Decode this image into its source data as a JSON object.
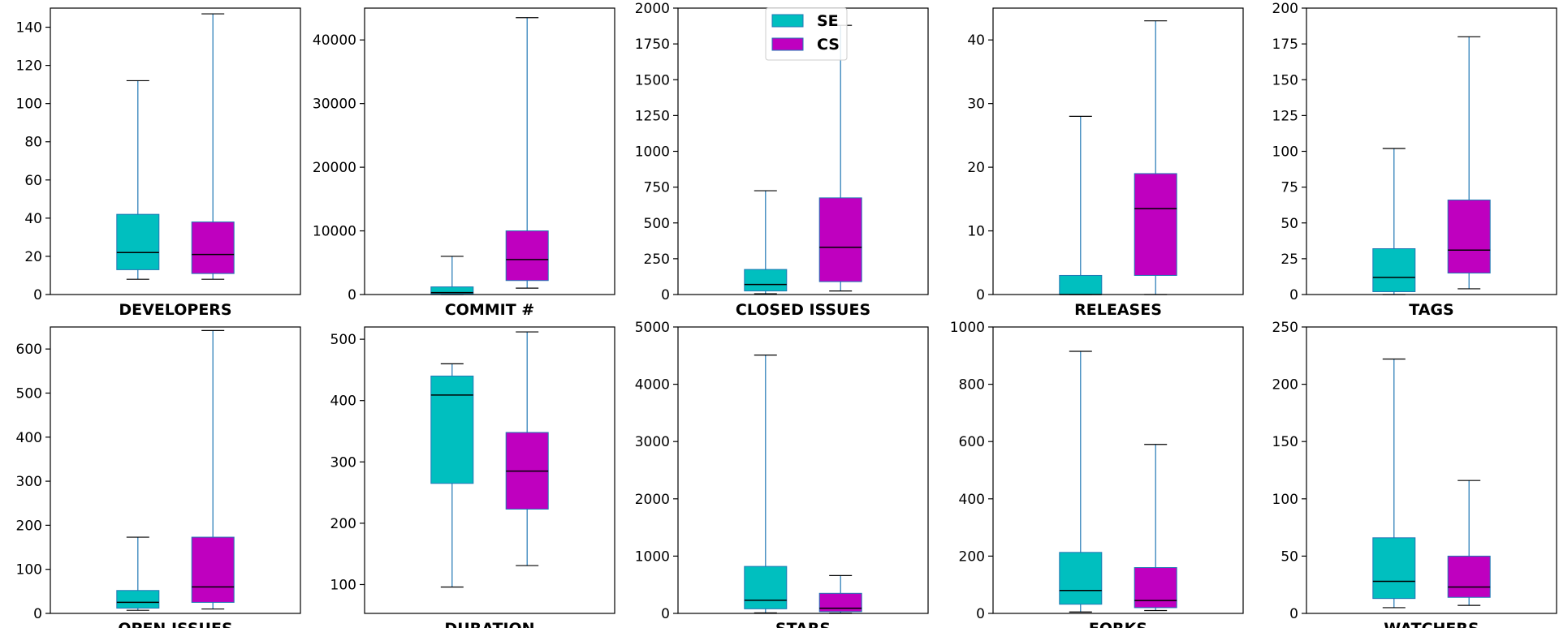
{
  "colors": {
    "se": "#00bfbf",
    "cs": "#bf00bf",
    "edge": "#1f77b4",
    "median": "#000000"
  },
  "legend": {
    "entries": [
      {
        "label": "SE",
        "color": "#00bfbf"
      },
      {
        "label": "CS",
        "color": "#bf00bf"
      }
    ],
    "placement": "top"
  },
  "chart_data": [
    {
      "type": "box",
      "title": "DEVELOPERS",
      "ylim": [
        0,
        150
      ],
      "yticks": [
        "0",
        "20",
        "40",
        "60",
        "80",
        "100",
        "120",
        "140"
      ],
      "series": [
        {
          "name": "SE",
          "whislo": 8,
          "q1": 13,
          "med": 22,
          "q3": 42,
          "whishi": 112
        },
        {
          "name": "CS",
          "whislo": 8,
          "q1": 11,
          "med": 21,
          "q3": 38,
          "whishi": 147
        }
      ]
    },
    {
      "type": "box",
      "title": "COMMIT #",
      "ylim": [
        0,
        45000
      ],
      "yticks": [
        "0",
        "10000",
        "20000",
        "30000",
        "40000"
      ],
      "series": [
        {
          "name": "SE",
          "whislo": 0,
          "q1": 100,
          "med": 300,
          "q3": 1200,
          "whishi": 6000
        },
        {
          "name": "CS",
          "whislo": 1000,
          "q1": 2200,
          "med": 5500,
          "q3": 10000,
          "whishi": 43500
        }
      ]
    },
    {
      "type": "box",
      "title": "CLOSED ISSUES",
      "ylim": [
        0,
        2000
      ],
      "yticks": [
        "0",
        "250",
        "500",
        "750",
        "1000",
        "1250",
        "1500",
        "1750",
        "2000"
      ],
      "series": [
        {
          "name": "SE",
          "whislo": 5,
          "q1": 25,
          "med": 70,
          "q3": 175,
          "whishi": 725
        },
        {
          "name": "CS",
          "whislo": 25,
          "q1": 90,
          "med": 330,
          "q3": 675,
          "whishi": 1880
        }
      ]
    },
    {
      "type": "box",
      "title": "RELEASES",
      "ylim": [
        0,
        45
      ],
      "yticks": [
        "0",
        "10",
        "20",
        "30",
        "40"
      ],
      "series": [
        {
          "name": "SE",
          "whislo": 0,
          "q1": 0,
          "med": 0,
          "q3": 3,
          "whishi": 28
        },
        {
          "name": "CS",
          "whislo": 0,
          "q1": 3,
          "med": 13.5,
          "q3": 19,
          "whishi": 43
        }
      ]
    },
    {
      "type": "box",
      "title": "TAGS",
      "ylim": [
        0,
        200
      ],
      "yticks": [
        "0",
        "25",
        "50",
        "75",
        "100",
        "125",
        "150",
        "175",
        "200"
      ],
      "series": [
        {
          "name": "SE",
          "whislo": 0,
          "q1": 2,
          "med": 12,
          "q3": 32,
          "whishi": 102
        },
        {
          "name": "CS",
          "whislo": 4,
          "q1": 15,
          "med": 31,
          "q3": 66,
          "whishi": 180
        }
      ]
    },
    {
      "type": "box",
      "title": "OPEN ISSUES",
      "ylim": [
        0,
        650
      ],
      "yticks": [
        "0",
        "100",
        "200",
        "300",
        "400",
        "500",
        "600"
      ],
      "series": [
        {
          "name": "SE",
          "whislo": 7,
          "q1": 12,
          "med": 25,
          "q3": 52,
          "whishi": 173
        },
        {
          "name": "CS",
          "whislo": 10,
          "q1": 25,
          "med": 60,
          "q3": 173,
          "whishi": 642
        }
      ]
    },
    {
      "type": "box",
      "title": "DURATION",
      "ylim": [
        53,
        520
      ],
      "yticks": [
        "100",
        "200",
        "300",
        "400",
        "500"
      ],
      "series": [
        {
          "name": "SE",
          "whislo": 96,
          "q1": 265,
          "med": 409,
          "q3": 440,
          "whishi": 460
        },
        {
          "name": "CS",
          "whislo": 131,
          "q1": 223,
          "med": 285,
          "q3": 348,
          "whishi": 512
        }
      ]
    },
    {
      "type": "box",
      "title": "STARS",
      "ylim": [
        0,
        5000
      ],
      "yticks": [
        "0",
        "1000",
        "2000",
        "3000",
        "4000",
        "5000"
      ],
      "series": [
        {
          "name": "SE",
          "whislo": 10,
          "q1": 80,
          "med": 230,
          "q3": 820,
          "whishi": 4510
        },
        {
          "name": "CS",
          "whislo": 5,
          "q1": 30,
          "med": 90,
          "q3": 350,
          "whishi": 660
        }
      ]
    },
    {
      "type": "box",
      "title": "FORKS",
      "ylim": [
        0,
        1000
      ],
      "yticks": [
        "0",
        "200",
        "400",
        "600",
        "800",
        "1000"
      ],
      "series": [
        {
          "name": "SE",
          "whislo": 5,
          "q1": 32,
          "med": 80,
          "q3": 213,
          "whishi": 915
        },
        {
          "name": "CS",
          "whislo": 10,
          "q1": 20,
          "med": 45,
          "q3": 160,
          "whishi": 590
        }
      ]
    },
    {
      "type": "box",
      "title": "WATCHERS",
      "ylim": [
        0,
        250
      ],
      "yticks": [
        "0",
        "50",
        "100",
        "150",
        "200",
        "250"
      ],
      "series": [
        {
          "name": "SE",
          "whislo": 5,
          "q1": 13,
          "med": 28,
          "q3": 66,
          "whishi": 222
        },
        {
          "name": "CS",
          "whislo": 7,
          "q1": 14,
          "med": 23,
          "q3": 50,
          "whishi": 116
        }
      ]
    }
  ]
}
